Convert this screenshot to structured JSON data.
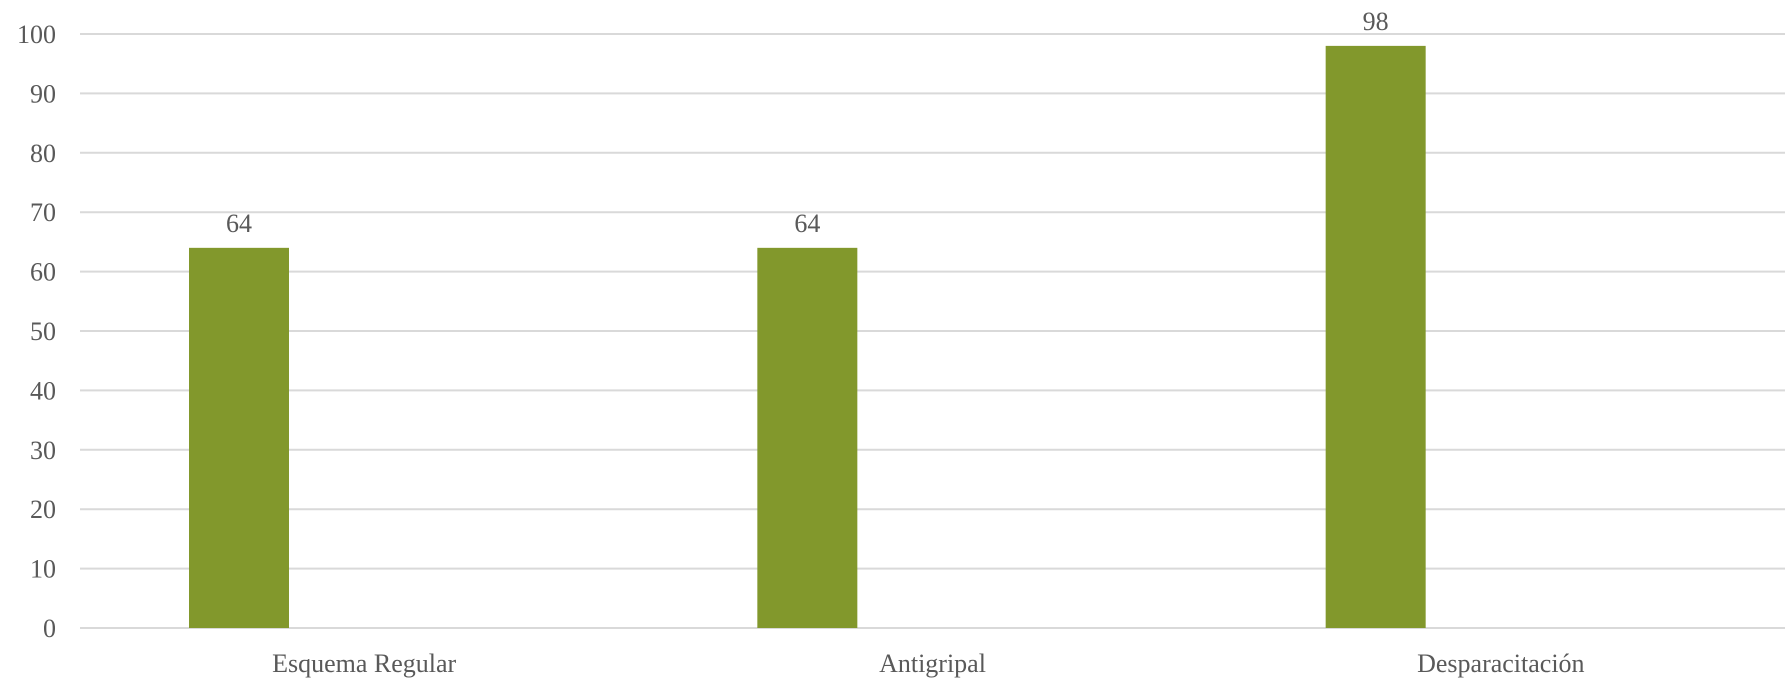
{
  "chart_data": {
    "type": "bar",
    "categories": [
      "Esquema Regular",
      "Antigripal",
      "Desparacitación"
    ],
    "series": [
      {
        "values": [
          64,
          64,
          98
        ]
      }
    ],
    "data_labels": [
      "64",
      "64",
      "98"
    ],
    "y_ticks": [
      "0",
      "10",
      "20",
      "30",
      "40",
      "50",
      "60",
      "70",
      "80",
      "90",
      "100"
    ],
    "ylim": [
      0,
      100
    ],
    "title": "",
    "xlabel": "",
    "ylabel": "",
    "grid": true,
    "legend": "none",
    "colors": {
      "bar": "#82982C",
      "grid": "#D9D9D9",
      "text": "#595959"
    }
  }
}
